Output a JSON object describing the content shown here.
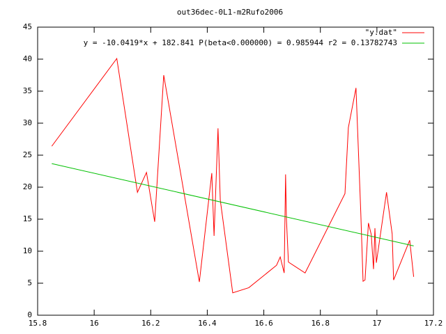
{
  "chart_data": {
    "type": "line",
    "title": "out36dec-0L1-m2Rufo2006",
    "xlim": [
      15.8,
      17.2
    ],
    "xticks": [
      15.8,
      16,
      16.2,
      16.4,
      16.6,
      16.8,
      17,
      17.2
    ],
    "ylim": [
      0,
      45
    ],
    "yticks": [
      0,
      5,
      10,
      15,
      20,
      25,
      30,
      35,
      40,
      45
    ],
    "grid": false,
    "legend": "top-right",
    "series": [
      {
        "name": "\"y.dat\"",
        "color": "#ff0000",
        "x": [
          15.85,
          16.08,
          16.153,
          16.185,
          16.214,
          16.246,
          16.372,
          16.416,
          16.424,
          16.438,
          16.446,
          16.49,
          16.547,
          16.645,
          16.658,
          16.672,
          16.677,
          16.68,
          16.687,
          16.746,
          16.887,
          16.899,
          16.926,
          16.943,
          16.951,
          16.958,
          16.97,
          16.98,
          16.988,
          16.993,
          16.998,
          17.034,
          17.054,
          17.059,
          17.116,
          17.13
        ],
        "values": [
          26.4,
          40.1,
          19.2,
          22.3,
          14.6,
          37.5,
          5.2,
          22.2,
          12.4,
          29.2,
          18,
          3.5,
          4.3,
          7.8,
          9.1,
          6.6,
          22,
          15,
          8.3,
          6.6,
          19,
          29.3,
          35.5,
          16,
          5.3,
          5.5,
          14.4,
          12.6,
          7.2,
          13.6,
          8.2,
          19.2,
          12.7,
          5.5,
          11.7,
          6
        ]
      },
      {
        "name": "y = -10.0419*x + 182.841 P(beta<0.000000) = 0.985944 r2 = 0.13782743",
        "color": "#00c000",
        "x": [
          15.85,
          17.13
        ],
        "values": [
          23.68,
          10.83
        ]
      }
    ]
  }
}
